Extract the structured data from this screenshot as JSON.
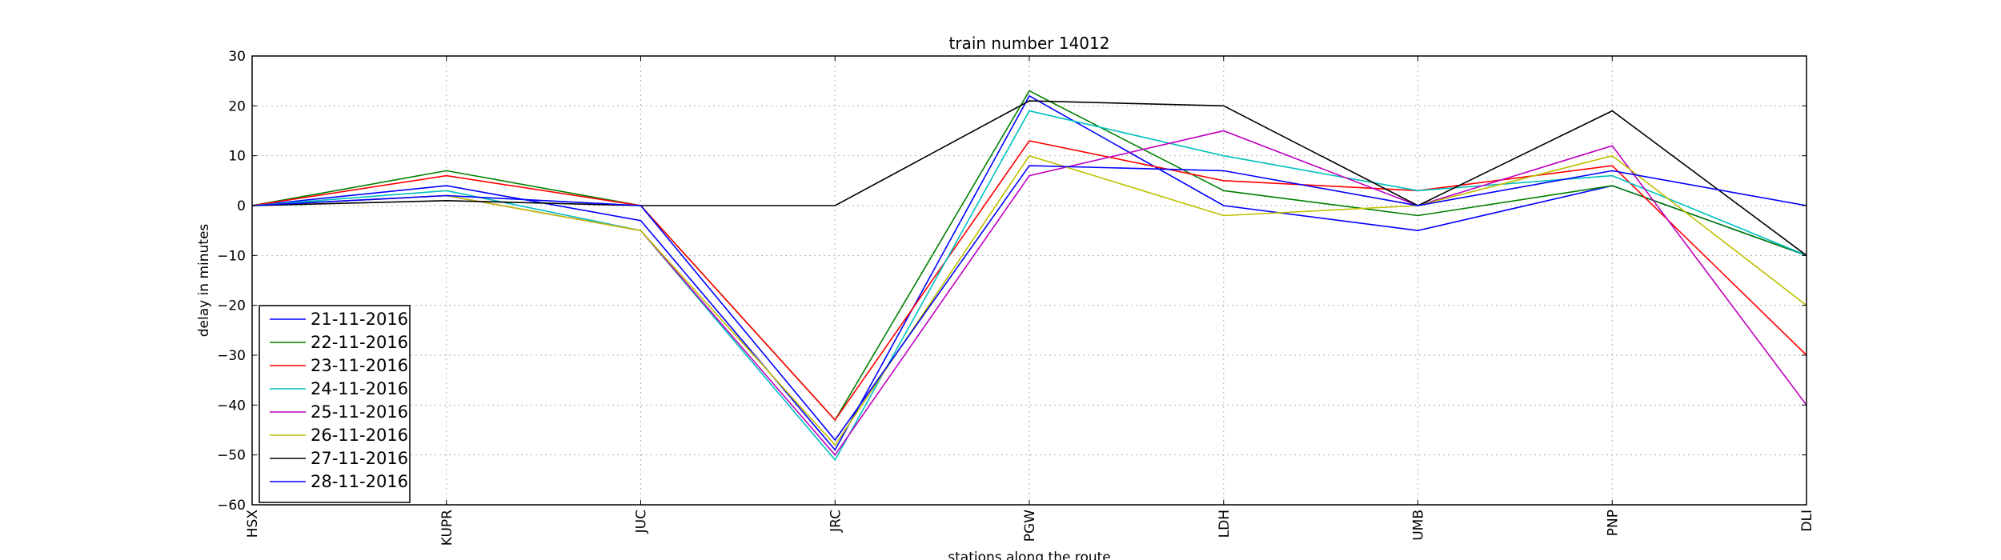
{
  "chart_data": {
    "type": "line",
    "title": "train number 14012",
    "xlabel": "stations along the route",
    "ylabel": "delay in minutes",
    "categories": [
      "HSX",
      "KUPR",
      "JUC",
      "JRC",
      "PGW",
      "LDH",
      "UMB",
      "PNP",
      "DLI"
    ],
    "ylim": [
      -60,
      30
    ],
    "yticks": [
      -60,
      -50,
      -40,
      -30,
      -20,
      -10,
      0,
      10,
      20,
      30
    ],
    "grid": true,
    "legend_position": "lower-left",
    "series": [
      {
        "name": "21-11-2016",
        "color": "#0000ff",
        "values": [
          0,
          4,
          -3,
          -49,
          22,
          0,
          -5,
          4,
          -10
        ]
      },
      {
        "name": "22-11-2016",
        "color": "#008000",
        "values": [
          0,
          7,
          0,
          -43,
          23,
          3,
          -2,
          4,
          -10
        ]
      },
      {
        "name": "23-11-2016",
        "color": "#ff0000",
        "values": [
          0,
          6,
          0,
          -43,
          13,
          5,
          3,
          8,
          -30
        ]
      },
      {
        "name": "24-11-2016",
        "color": "#00bfbf",
        "values": [
          0,
          3,
          -5,
          -51,
          19,
          10,
          3,
          6,
          -10
        ]
      },
      {
        "name": "25-11-2016",
        "color": "#bf00bf",
        "values": [
          0,
          2,
          -5,
          -50,
          6,
          15,
          0,
          12,
          -40
        ]
      },
      {
        "name": "26-11-2016",
        "color": "#bfbf00",
        "values": [
          0,
          2,
          -5,
          -48,
          10,
          -2,
          0,
          10,
          -20
        ]
      },
      {
        "name": "27-11-2016",
        "color": "#000000",
        "values": [
          0,
          1,
          0,
          0,
          21,
          20,
          0,
          19,
          -10
        ]
      },
      {
        "name": "28-11-2016",
        "color": "#0000ff",
        "values": [
          0,
          2,
          0,
          -47,
          8,
          7,
          0,
          7,
          0
        ]
      }
    ]
  }
}
